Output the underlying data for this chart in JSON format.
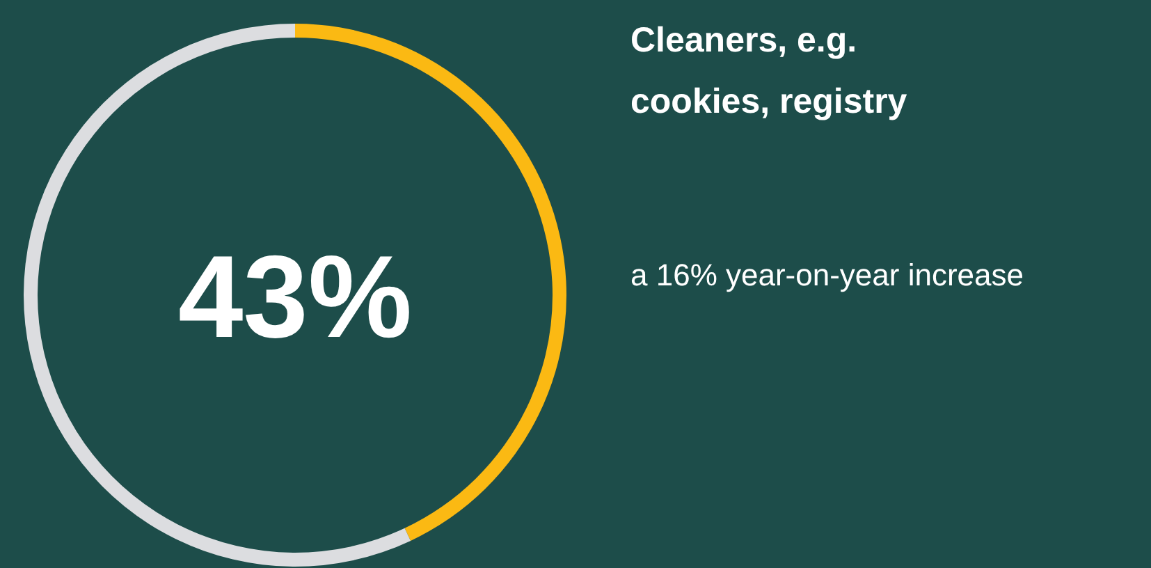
{
  "chart_data": {
    "type": "donut",
    "title": "Cleaners, e.g.\ncookies, registry",
    "categories": [
      null,
      null
    ],
    "values": [
      43,
      57
    ],
    "colors": [
      "#fbb913",
      "#dcdde0"
    ],
    "value_labels": [
      "43%",
      null
    ],
    "annotations": [
      "a 16% year-on-year increase"
    ]
  }
}
